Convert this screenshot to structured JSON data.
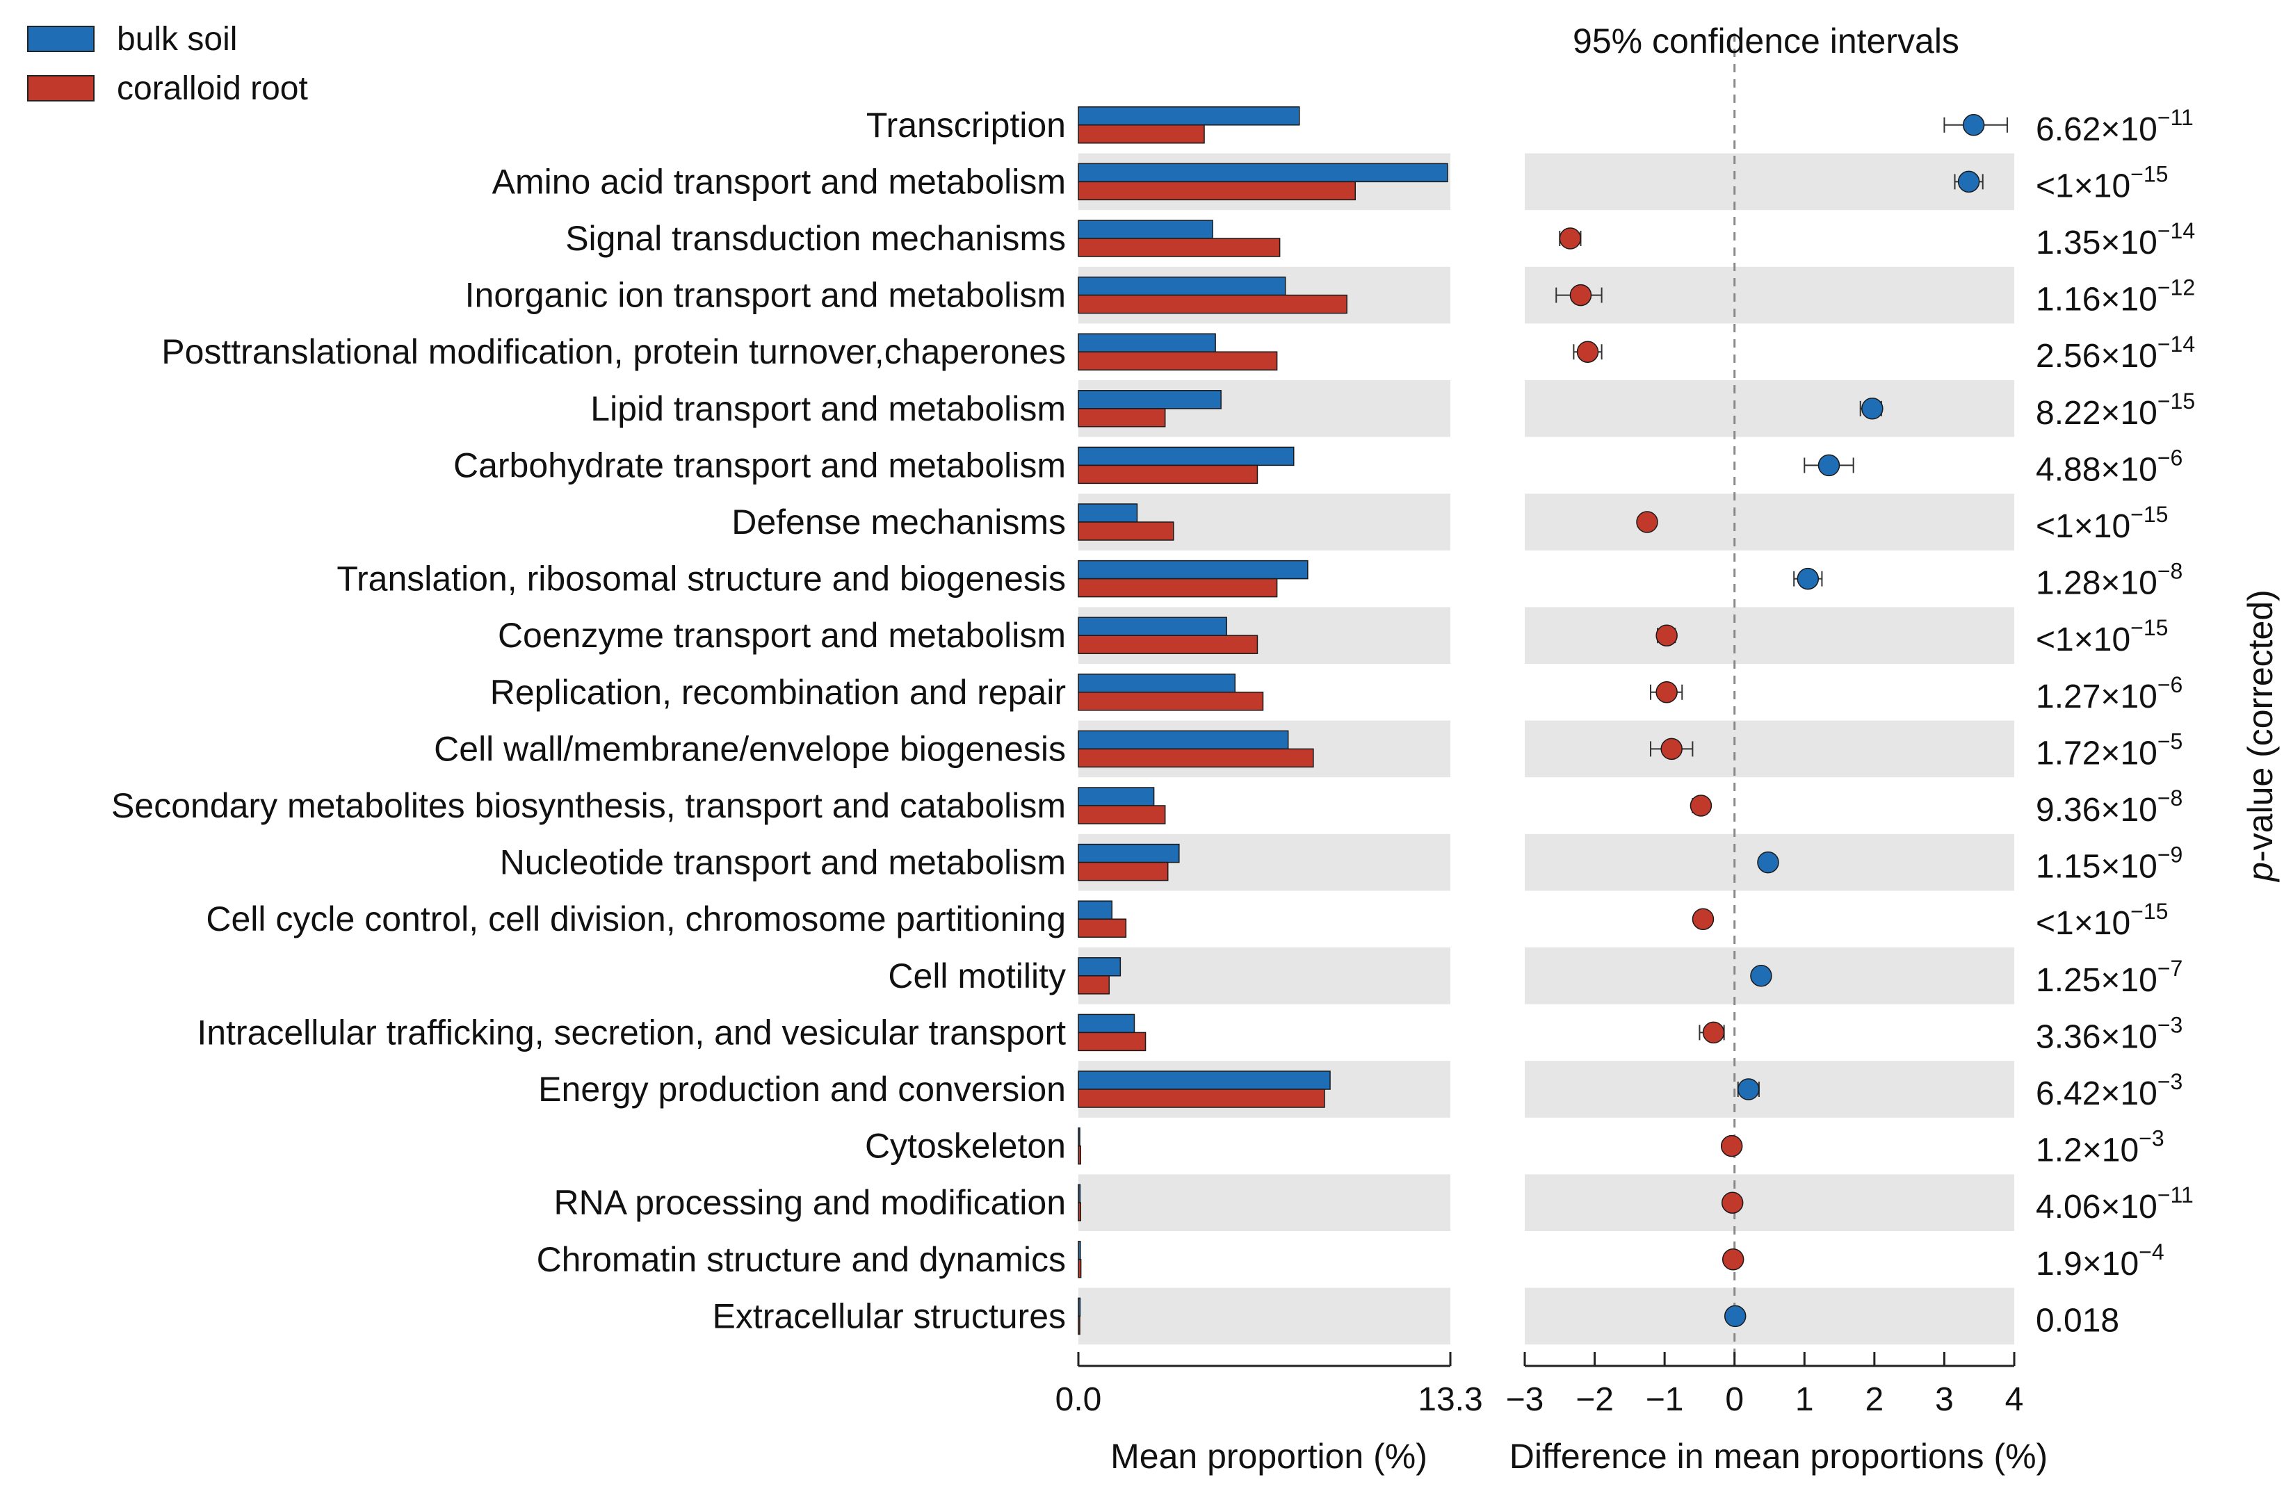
{
  "colors": {
    "bulk_soil": "#1f6db5",
    "coralloid_root": "#c0392b",
    "band": "#e6e6e6",
    "axis": "#222222",
    "zero_line": "#8a8a8a"
  },
  "chart_data": {
    "type": "extended-error-bar",
    "legend": [
      {
        "name": "bulk soil",
        "color": "#1f6db5"
      },
      {
        "name": "coralloid root",
        "color": "#c0392b"
      }
    ],
    "ci_title": "95% confidence intervals",
    "left_xlabel": "Mean proportion (%)",
    "left_xlim": [
      0,
      13.3
    ],
    "left_ticks": [
      "0.0",
      "13.3"
    ],
    "right_xlabel": "Difference in mean proportions (%)",
    "right_xlim": [
      -3,
      4
    ],
    "right_ticks": [
      -3,
      -2,
      -1,
      0,
      1,
      2,
      3,
      4
    ],
    "pvalue_label": "-value (corrected)",
    "pvalue_label_italic": "p",
    "categories": [
      {
        "name": "Transcription",
        "bulk": 7.9,
        "root": 4.5,
        "diff": 3.42,
        "ci": [
          3.0,
          3.9
        ],
        "group": "bulk",
        "p_base": "6.62×10",
        "p_exp": "−11"
      },
      {
        "name": "Amino acid transport and metabolism",
        "bulk": 13.2,
        "root": 9.9,
        "diff": 3.35,
        "ci": [
          3.15,
          3.55
        ],
        "group": "bulk",
        "p_base": "<1×10",
        "p_exp": "−15"
      },
      {
        "name": "Signal transduction mechanisms",
        "bulk": 4.8,
        "root": 7.2,
        "diff": -2.35,
        "ci": [
          -2.5,
          -2.2
        ],
        "group": "root",
        "p_base": "1.35×10",
        "p_exp": "−14"
      },
      {
        "name": "Inorganic ion transport and metabolism",
        "bulk": 7.4,
        "root": 9.6,
        "diff": -2.2,
        "ci": [
          -2.55,
          -1.9
        ],
        "group": "root",
        "p_base": "1.16×10",
        "p_exp": "−12"
      },
      {
        "name": "Posttranslational modification, protein turnover,chaperones",
        "bulk": 4.9,
        "root": 7.1,
        "diff": -2.1,
        "ci": [
          -2.3,
          -1.9
        ],
        "group": "root",
        "p_base": "2.56×10",
        "p_exp": "−14"
      },
      {
        "name": "Lipid transport and metabolism",
        "bulk": 5.1,
        "root": 3.1,
        "diff": 1.97,
        "ci": [
          1.8,
          2.1
        ],
        "group": "bulk",
        "p_base": "8.22×10",
        "p_exp": "−15"
      },
      {
        "name": "Carbohydrate transport and metabolism",
        "bulk": 7.7,
        "root": 6.4,
        "diff": 1.35,
        "ci": [
          1.0,
          1.7
        ],
        "group": "bulk",
        "p_base": "4.88×10",
        "p_exp": "−6"
      },
      {
        "name": "Defense mechanisms",
        "bulk": 2.1,
        "root": 3.4,
        "diff": -1.25,
        "ci": [
          -1.35,
          -1.15
        ],
        "group": "root",
        "p_base": "<1×10",
        "p_exp": "−15"
      },
      {
        "name": "Translation, ribosomal structure and biogenesis",
        "bulk": 8.2,
        "root": 7.1,
        "diff": 1.05,
        "ci": [
          0.85,
          1.25
        ],
        "group": "bulk",
        "p_base": "1.28×10",
        "p_exp": "−8"
      },
      {
        "name": "Coenzyme transport and metabolism",
        "bulk": 5.3,
        "root": 6.4,
        "diff": -0.97,
        "ci": [
          -1.1,
          -0.85
        ],
        "group": "root",
        "p_base": "<1×10",
        "p_exp": "−15"
      },
      {
        "name": "Replication, recombination and repair",
        "bulk": 5.6,
        "root": 6.6,
        "diff": -0.97,
        "ci": [
          -1.2,
          -0.75
        ],
        "group": "root",
        "p_base": "1.27×10",
        "p_exp": "−6"
      },
      {
        "name": "Cell wall/membrane/envelope biogenesis",
        "bulk": 7.5,
        "root": 8.4,
        "diff": -0.9,
        "ci": [
          -1.2,
          -0.6
        ],
        "group": "root",
        "p_base": "1.72×10",
        "p_exp": "−5"
      },
      {
        "name": "Secondary metabolites biosynthesis, transport and catabolism",
        "bulk": 2.7,
        "root": 3.1,
        "diff": -0.48,
        "ci": [
          -0.6,
          -0.38
        ],
        "group": "root",
        "p_base": "9.36×10",
        "p_exp": "−8"
      },
      {
        "name": "Nucleotide transport and metabolism",
        "bulk": 3.6,
        "root": 3.2,
        "diff": 0.48,
        "ci": [
          0.4,
          0.56
        ],
        "group": "bulk",
        "p_base": "1.15×10",
        "p_exp": "−9"
      },
      {
        "name": "Cell cycle control, cell division, chromosome partitioning",
        "bulk": 1.2,
        "root": 1.7,
        "diff": -0.45,
        "ci": [
          -0.52,
          -0.38
        ],
        "group": "root",
        "p_base": "<1×10",
        "p_exp": "−15"
      },
      {
        "name": "Cell motility",
        "bulk": 1.5,
        "root": 1.1,
        "diff": 0.38,
        "ci": [
          0.3,
          0.45
        ],
        "group": "bulk",
        "p_base": "1.25×10",
        "p_exp": "−7"
      },
      {
        "name": "Intracellular trafficking, secretion, and vesicular transport",
        "bulk": 2.0,
        "root": 2.4,
        "diff": -0.3,
        "ci": [
          -0.5,
          -0.15
        ],
        "group": "root",
        "p_base": "3.36×10",
        "p_exp": "−3"
      },
      {
        "name": "Energy production and conversion",
        "bulk": 9.0,
        "root": 8.8,
        "diff": 0.2,
        "ci": [
          0.05,
          0.35
        ],
        "group": "bulk",
        "p_base": "6.42×10",
        "p_exp": "−3"
      },
      {
        "name": "Cytoskeleton",
        "bulk": 0.05,
        "root": 0.08,
        "diff": -0.04,
        "ci": [
          -0.08,
          0.0
        ],
        "group": "root",
        "p_base": "1.2×10",
        "p_exp": "−3"
      },
      {
        "name": "RNA processing and modification",
        "bulk": 0.06,
        "root": 0.08,
        "diff": -0.03,
        "ci": [
          -0.06,
          0.0
        ],
        "group": "root",
        "p_base": "4.06×10",
        "p_exp": "−11"
      },
      {
        "name": "Chromatin structure and dynamics",
        "bulk": 0.07,
        "root": 0.09,
        "diff": -0.02,
        "ci": [
          -0.05,
          0.01
        ],
        "group": "root",
        "p_base": "1.9×10",
        "p_exp": "−4"
      },
      {
        "name": "Extracellular structures",
        "bulk": 0.06,
        "root": 0.05,
        "diff": 0.01,
        "ci": [
          -0.01,
          0.03
        ],
        "group": "bulk",
        "p_base": "0.018",
        "p_exp": ""
      }
    ]
  }
}
